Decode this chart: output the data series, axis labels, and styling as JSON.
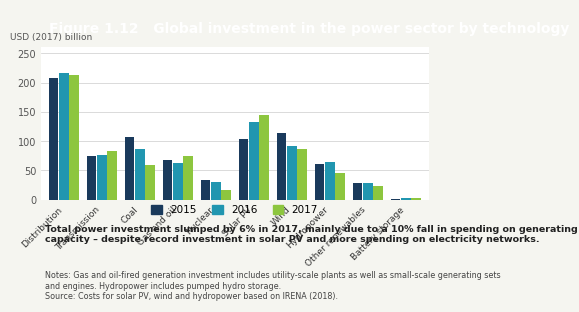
{
  "title": "Figure 1.12   Global investment in the power sector by technology",
  "ylabel": "USD (2017) billion",
  "categories": [
    "Distribution",
    "Transmission",
    "Coal",
    "Gas and oil",
    "Nuclear",
    "Solar PV",
    "Wind",
    "Hydropower",
    "Other renewables",
    "Battery storage"
  ],
  "values_2015": [
    208,
    75,
    107,
    67,
    33,
    104,
    114,
    61,
    29,
    1
  ],
  "values_2016": [
    216,
    76,
    86,
    62,
    30,
    133,
    91,
    64,
    29,
    2
  ],
  "values_2017": [
    213,
    83,
    59,
    74,
    17,
    145,
    86,
    45,
    24,
    3
  ],
  "color_2015": "#1a3a5c",
  "color_2016": "#2196b0",
  "color_2017": "#8dc63f",
  "ylim": [
    0,
    260
  ],
  "yticks": [
    0,
    50,
    100,
    150,
    200,
    250
  ],
  "title_bg_color": "#e07820",
  "title_text_color": "#ffffff",
  "title_fontsize": 10,
  "legend_labels": [
    "2015",
    "2016",
    "2017"
  ],
  "bold_text": "Total power investment slumped by 6% in 2017, mainly due to a 10% fall in spending on generating\ncapacity – despite record investment in solar PV and more spending on electricity networks.",
  "notes_text": "Notes: Gas and oil-fired generation investment includes utility-scale plants as well as small-scale generating sets\nand engines. Hydropower includes pumped hydro storage.\nSource: Costs for solar PV, wind and hydropower based on IRENA (2018).",
  "bg_color": "#f5f5f0",
  "plot_bg_color": "#ffffff"
}
